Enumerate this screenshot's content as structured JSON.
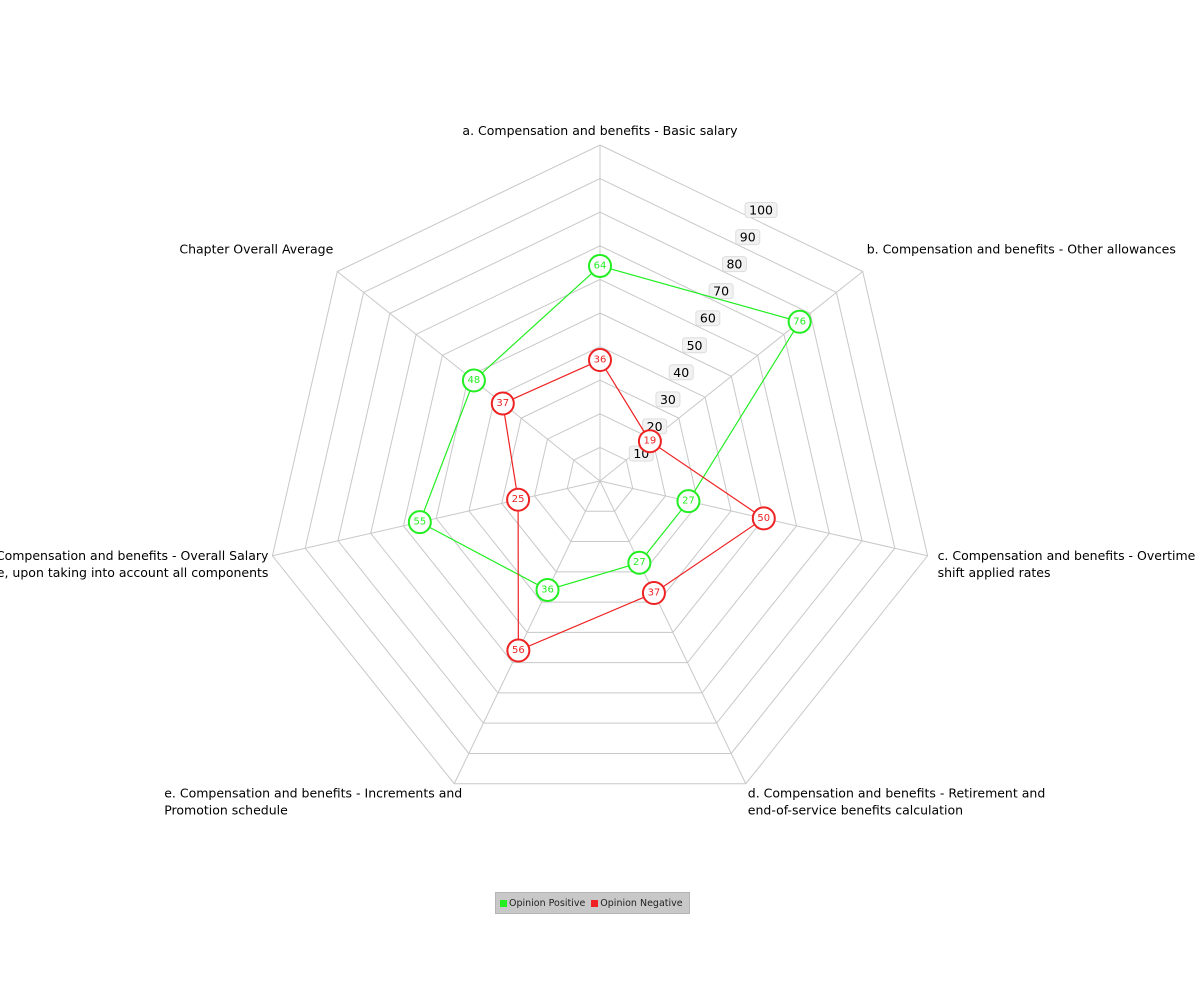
{
  "chart_data": {
    "type": "radar",
    "axes": [
      [
        "a. Compensation and benefits - Basic salary"
      ],
      [
        "b. Compensation and benefits - Other allowances"
      ],
      [
        "c. Compensation and benefits - Overtime  night",
        "shift applied rates"
      ],
      [
        "d. Compensation and benefits - Retirement and",
        "end-of-service benefits calculation"
      ],
      [
        "e. Compensation and benefits - Increments and",
        "Promotion schedule"
      ],
      [
        "f. Compensation and benefits - Overall Salary",
        "package, upon taking into account all components"
      ],
      [
        "Chapter Overall Average"
      ]
    ],
    "r_ticks": [
      10,
      20,
      30,
      40,
      50,
      60,
      70,
      80,
      90,
      100
    ],
    "rlim": [
      0,
      100
    ],
    "series": [
      {
        "name": "Opinion Positive",
        "color": "#22ee22",
        "values": [
          64,
          76,
          27,
          27,
          36,
          55,
          48
        ]
      },
      {
        "name": "Opinion Negative",
        "color": "#ee2222",
        "values": [
          36,
          19,
          50,
          37,
          56,
          25,
          37
        ]
      }
    ],
    "legend_position": "bottom-center",
    "grid": true
  }
}
